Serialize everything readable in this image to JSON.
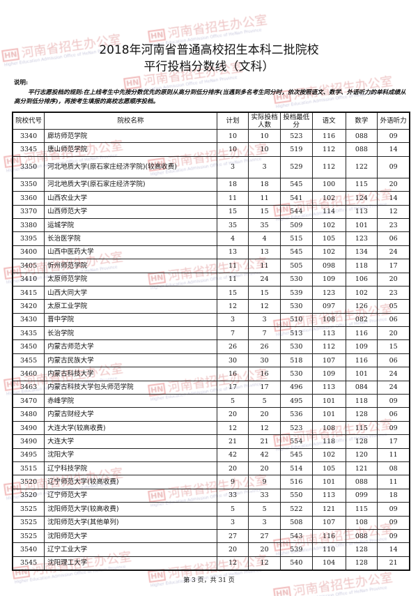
{
  "title_line1": "2018年河南省普通高校招生本科二批院校",
  "title_line2": "平行投档分数线（文科）",
  "note_heading": "说明:",
  "note_text": "平行志愿投档的规则:在上线考生中先按分数优先的原则从高分到低分排序(当遇到多名考生同分时，依次按照语文、数学、外语听力的单科成绩从高分到低分排序)，再按考生填报的高校志愿顺序投档。",
  "watermark": {
    "text": "河南省招生办公室",
    "logo": "HN",
    "subtitle": "Higher Education Admission Office of HeNan Province",
    "color": "#d05a5a"
  },
  "table": {
    "headers": [
      "院校代号",
      "院校名称",
      "计划",
      "实际投档人数",
      "投档最低分",
      "语文",
      "数学",
      "外语听力"
    ],
    "rows": [
      [
        "3340",
        "廊坊师范学院",
        "10",
        "10",
        "523",
        "116",
        "088",
        "09"
      ],
      [
        "3345",
        "唐山师范学院",
        "10",
        "10",
        "519",
        "112",
        "088",
        "14"
      ],
      [
        "3350",
        "河北地质大学(原石家庄经济学院)(较高收费)",
        "3",
        "3",
        "529",
        "112",
        "122",
        "09"
      ],
      [
        "3350",
        "河北地质大学(原石家庄经济学院)",
        "18",
        "18",
        "545",
        "100",
        "115",
        "20"
      ],
      [
        "3360",
        "山西农业大学",
        "11",
        "11",
        "541",
        "102",
        "124",
        "14"
      ],
      [
        "3370",
        "山西师范大学",
        "15",
        "15",
        "544",
        "114",
        "113",
        "12"
      ],
      [
        "3380",
        "运城学院",
        "35",
        "35",
        "509",
        "102",
        "101",
        "23"
      ],
      [
        "3395",
        "长治医学院",
        "4",
        "4",
        "515",
        "105",
        "123",
        "06"
      ],
      [
        "3400",
        "山西中医药大学",
        "13",
        "13",
        "545",
        "102",
        "134",
        "24"
      ],
      [
        "3405",
        "忻州师范学院",
        "11",
        "11",
        "505",
        "098",
        "118",
        "17"
      ],
      [
        "3410",
        "太原师范学院",
        "11",
        "24",
        "530",
        "109",
        "106",
        "20"
      ],
      [
        "3415",
        "山西大同大学",
        "15",
        "15",
        "539",
        "123",
        "102",
        "23"
      ],
      [
        "3420",
        "太原工业学院",
        "12",
        "12",
        "530",
        "097",
        "126",
        "05"
      ],
      [
        "3430",
        "晋中学院",
        "3",
        "3",
        "510",
        "108",
        "082",
        "06"
      ],
      [
        "3435",
        "长治学院",
        "7",
        "7",
        "513",
        "113",
        "116",
        "20"
      ],
      [
        "3450",
        "内蒙古师范大学",
        "26",
        "26",
        "530",
        "112",
        "109",
        "15"
      ],
      [
        "3455",
        "内蒙古民族大学",
        "30",
        "30",
        "518",
        "107",
        "116",
        "06"
      ],
      [
        "3460",
        "内蒙古科技大学",
        "16",
        "16",
        "530",
        "109",
        "101",
        "24"
      ],
      [
        "3463",
        "内蒙古科技大学包头师范学院",
        "17",
        "17",
        "496",
        "113",
        "084",
        "24"
      ],
      [
        "3470",
        "赤峰学院",
        "5",
        "5",
        "495",
        "101",
        "118",
        "09"
      ],
      [
        "3480",
        "内蒙古财经大学",
        "20",
        "20",
        "536",
        "101",
        "128",
        "06"
      ],
      [
        "3490",
        "大连大学(较高收费)",
        "12",
        "12",
        "523",
        "108",
        "115",
        "09"
      ],
      [
        "3490",
        "大连大学",
        "21",
        "21",
        "554",
        "118",
        "128",
        "17"
      ],
      [
        "3495",
        "沈阳大学",
        "42",
        "42",
        "545",
        "102",
        "120",
        "11"
      ],
      [
        "3515",
        "辽宁科技学院",
        "20",
        "20",
        "514",
        "105",
        "121",
        "08"
      ],
      [
        "3520",
        "辽宁师范大学(较高收费)",
        "9",
        "9",
        "516",
        "101",
        "088",
        "11"
      ],
      [
        "3520",
        "辽宁师范大学",
        "33",
        "33",
        "550",
        "113",
        "099",
        "18"
      ],
      [
        "3525",
        "沈阳师范大学(较高收费)",
        "5",
        "5",
        "522",
        "121",
        "115",
        "09"
      ],
      [
        "3525",
        "沈阳师范大学(其他单列)",
        "3",
        "3",
        "508",
        "107",
        "108",
        "09"
      ],
      [
        "3525",
        "沈阳师范大学",
        "27",
        "27",
        "543",
        "116",
        "088",
        "09"
      ],
      [
        "3540",
        "辽宁工业大学",
        "20",
        "20",
        "539",
        "110",
        "128",
        "14"
      ],
      [
        "3545",
        "沈阳理工大学",
        "12",
        "12",
        "540",
        "104",
        "128",
        "21"
      ]
    ]
  },
  "footer": "第 3 页，共 31 页"
}
